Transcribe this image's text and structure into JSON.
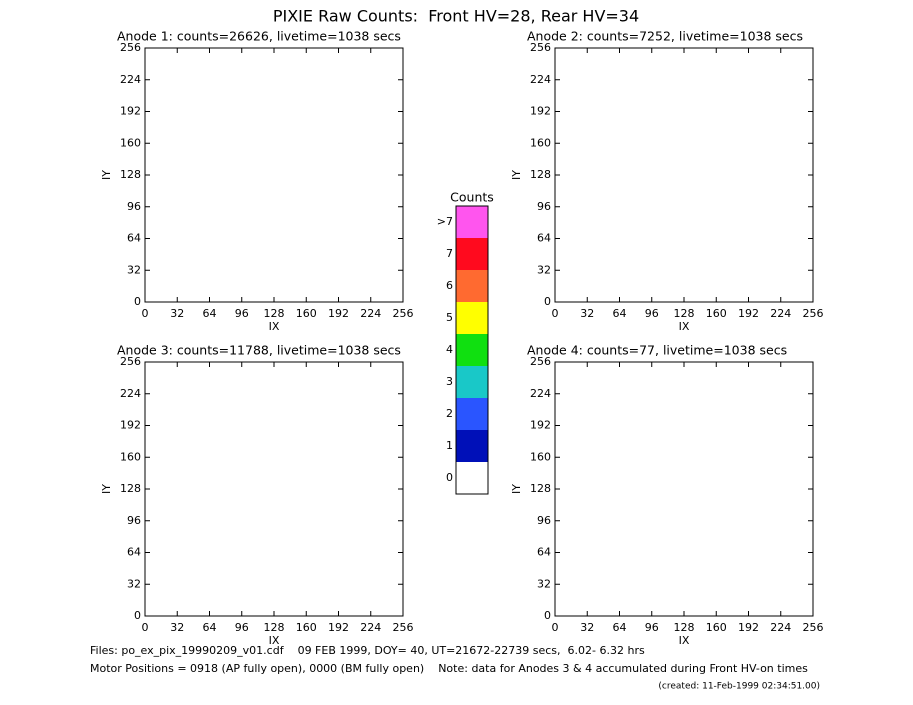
{
  "title": "PIXIE Raw Counts:  Front HV=28, Rear HV=34",
  "panels": [
    {
      "title": "Anode 1: counts=26626, livetime=1038 secs",
      "xlabel": "IX",
      "ylabel": "IY",
      "xlim": [
        0,
        256
      ],
      "ylim": [
        0,
        256
      ],
      "xticks": [
        0,
        32,
        64,
        96,
        128,
        160,
        192,
        224,
        256
      ],
      "yticks": [
        0,
        32,
        64,
        96,
        128,
        160,
        192,
        224,
        256
      ]
    },
    {
      "title": "Anode 2: counts=7252, livetime=1038 secs",
      "xlabel": "IX",
      "ylabel": "IY",
      "xlim": [
        0,
        256
      ],
      "ylim": [
        0,
        256
      ],
      "xticks": [
        0,
        32,
        64,
        96,
        128,
        160,
        192,
        224,
        256
      ],
      "yticks": [
        0,
        32,
        64,
        96,
        128,
        160,
        192,
        224,
        256
      ]
    },
    {
      "title": "Anode 3: counts=11788, livetime=1038 secs",
      "xlabel": "IX",
      "ylabel": "IY",
      "xlim": [
        0,
        256
      ],
      "ylim": [
        0,
        256
      ],
      "xticks": [
        0,
        32,
        64,
        96,
        128,
        160,
        192,
        224,
        256
      ],
      "yticks": [
        0,
        32,
        64,
        96,
        128,
        160,
        192,
        224,
        256
      ]
    },
    {
      "title": "Anode 4: counts=77, livetime=1038 secs",
      "xlabel": "IX",
      "ylabel": "IY",
      "xlim": [
        0,
        256
      ],
      "ylim": [
        0,
        256
      ],
      "xticks": [
        0,
        32,
        64,
        96,
        128,
        160,
        192,
        224,
        256
      ],
      "yticks": [
        0,
        32,
        64,
        96,
        128,
        160,
        192,
        224,
        256
      ]
    }
  ],
  "colorbar": {
    "title": "Counts",
    "levels": [
      {
        "label": "0",
        "color": "#ffffff"
      },
      {
        "label": "1",
        "color": "#0010b8"
      },
      {
        "label": "2",
        "color": "#2a55ff"
      },
      {
        "label": "3",
        "color": "#19c8c8"
      },
      {
        "label": "4",
        "color": "#10e010"
      },
      {
        "label": "5",
        "color": "#ffff00"
      },
      {
        "label": "6",
        "color": "#ff6a30"
      },
      {
        "label": "7",
        "color": "#ff0a1e"
      },
      {
        "label": ">7",
        "color": "#ff55ee"
      }
    ]
  },
  "footer": {
    "files": "Files: po_ex_pix_19990209_v01.cdf    09 FEB 1999, DOY= 40, UT=21672-22739 secs,  6.02- 6.32 hrs",
    "motor": "Motor Positions = 0918 (AP fully open), 0000 (BM fully open)    Note: data for Anodes 3 & 4 accumulated during Front HV-on times",
    "created": "(created: 11-Feb-1999 02:34:51.00)"
  }
}
